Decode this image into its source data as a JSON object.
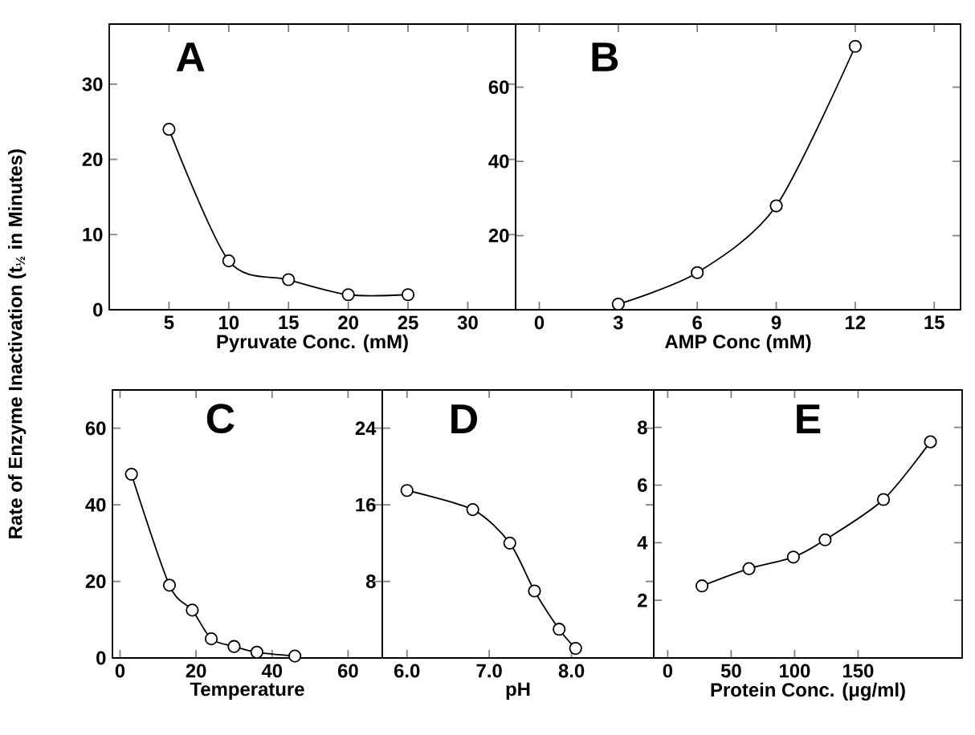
{
  "chart_data": [
    {
      "type": "line",
      "title": "A",
      "xlabel": "Pyruvate Conc. (mM)",
      "ylabel": "Rate of Enzyme Inactivation (t$_{½}$ in Minutes)",
      "x": [
        5,
        10,
        15,
        20,
        25
      ],
      "series": [
        {
          "color": "#000000",
          "values": [
            24,
            6.5,
            4,
            2,
            2
          ]
        }
      ],
      "xlim": [
        0,
        34
      ],
      "ylim": [
        0,
        38
      ],
      "xticks": [
        5,
        10,
        15,
        20,
        25,
        30
      ],
      "yticks": [
        0,
        10,
        20,
        30
      ],
      "marker": "circle",
      "line_style": "solid"
    },
    {
      "type": "line",
      "title": "B",
      "xlabel": "AMP Conc (mM)",
      "x": [
        3,
        6,
        9,
        12
      ],
      "series": [
        {
          "color": "#000000",
          "values": [
            1.5,
            10,
            28,
            71
          ]
        }
      ],
      "xlim": [
        -0.9,
        16
      ],
      "ylim": [
        0,
        77
      ],
      "xticks": [
        0,
        3,
        6,
        9,
        12,
        15
      ],
      "yticks": [
        20,
        40,
        60
      ],
      "marker": "circle",
      "line_style": "solid"
    },
    {
      "type": "line",
      "title": "C",
      "xlabel": "Temperature",
      "x": [
        3,
        13,
        19,
        24,
        30,
        36,
        46
      ],
      "series": [
        {
          "color": "#000000",
          "values": [
            48,
            19,
            12.5,
            5,
            3,
            1.5,
            0.5
          ]
        }
      ],
      "xlim": [
        -2,
        69
      ],
      "ylim": [
        0,
        70
      ],
      "xticks": [
        0,
        20,
        40,
        60
      ],
      "yticks": [
        0,
        20,
        40,
        60
      ],
      "marker": "circle",
      "line_style": "solid"
    },
    {
      "type": "line",
      "title": "D",
      "xlabel": "pH",
      "x": [
        6.0,
        6.8,
        7.25,
        7.55,
        7.85,
        8.05
      ],
      "series": [
        {
          "color": "#000000",
          "values": [
            17.5,
            15.5,
            12,
            7,
            3,
            1
          ]
        }
      ],
      "xlim": [
        5.7,
        9.0
      ],
      "ylim": [
        0,
        28
      ],
      "xticks": [
        {
          "value": 6,
          "label": "6.0"
        },
        {
          "value": 7,
          "label": "7.0"
        },
        {
          "value": 8,
          "label": "8.0"
        }
      ],
      "yticks": [
        8,
        16,
        24
      ],
      "marker": "circle",
      "line_style": "solid"
    },
    {
      "type": "line",
      "title": "E",
      "xlabel": "Protein Conc. (μg/ml)",
      "x": [
        27,
        64,
        99,
        124,
        170,
        207
      ],
      "series": [
        {
          "color": "#000000",
          "values": [
            2.5,
            3.1,
            3.5,
            4.1,
            5.5,
            7.5
          ]
        }
      ],
      "xlim": [
        -11,
        232
      ],
      "ylim": [
        0,
        9.3
      ],
      "xticks": [
        0,
        50,
        100,
        150
      ],
      "yticks": [
        2,
        4,
        6,
        8
      ],
      "marker": "circle",
      "line_style": "solid"
    }
  ]
}
